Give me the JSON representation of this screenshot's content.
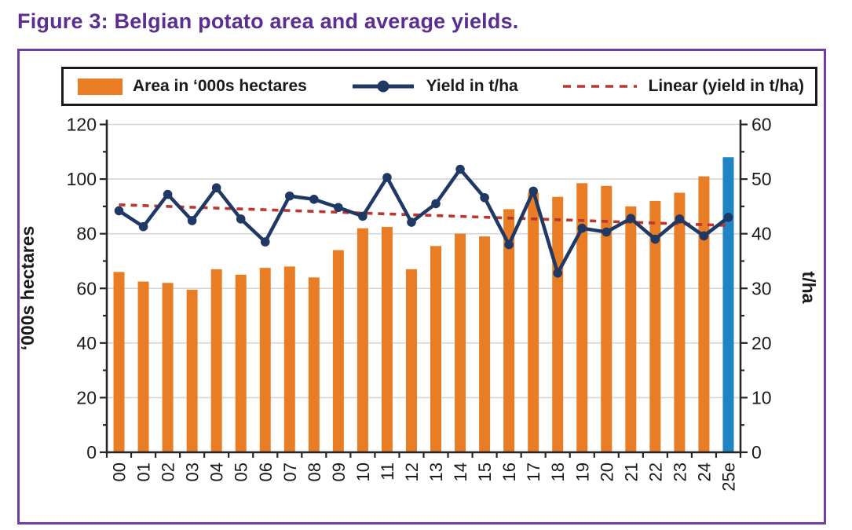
{
  "title": "Figure 3: Belgian potato area and average yields.",
  "legend": [
    {
      "label": "Area in ‘000s hectares",
      "marker": "orange-bar-swatch"
    },
    {
      "label": "Yield in t/ha",
      "marker": "navy-line-with-dot"
    },
    {
      "label": "Linear (yield in t/ha)",
      "marker": "red-dashed-line"
    }
  ],
  "colors": {
    "title": "#5B2E91",
    "frame_border": "#6B3FA6",
    "legend_border": "#1A1A1A",
    "area_bar": "#E87D25",
    "estimate_bar": "#1F83C4",
    "yield_line": "#1F3864",
    "trend_line": "#BE3530",
    "gridline": "#D6D6D6",
    "axis": "#262626",
    "text": "#1A1A1A"
  },
  "chart_data": {
    "type": "combo (bar + line + linear trend)",
    "title": "Figure 3: Belgian potato area and average yields.",
    "categories": [
      "00",
      "01",
      "02",
      "03",
      "04",
      "05",
      "06",
      "07",
      "08",
      "09",
      "10",
      "11",
      "12",
      "13",
      "14",
      "15",
      "16",
      "17",
      "18",
      "19",
      "20",
      "21",
      "22",
      "23",
      "24",
      "25e"
    ],
    "series": [
      {
        "name": "Area in ‘000s hectares",
        "type": "bar",
        "axis": "left",
        "values": [
          66,
          62.5,
          62,
          59.5,
          67,
          65,
          67.5,
          68,
          64,
          74,
          82,
          82.5,
          67,
          75.5,
          80,
          79,
          89,
          95,
          93.5,
          98.5,
          97.5,
          90,
          92,
          95,
          101,
          108
        ],
        "note": "final category 25e drawn as blue estimate bar"
      },
      {
        "name": "Yield in t/ha",
        "type": "line",
        "axis": "right",
        "values": [
          44.2,
          41.3,
          47.2,
          42.4,
          48.4,
          42.7,
          38.5,
          46.9,
          46.3,
          44.8,
          43.2,
          50.3,
          42.1,
          45.5,
          51.8,
          46.6,
          38,
          47.8,
          32.8,
          41,
          40.3,
          42.8,
          39,
          42.7,
          39.6,
          43
        ]
      },
      {
        "name": "Linear (yield in t/ha)",
        "type": "linear-trend",
        "axis": "right",
        "start": 45.3,
        "end": 41.5,
        "style": "dashed"
      }
    ],
    "left_axis": {
      "label": "‘000s hectares",
      "min": 0,
      "max": 120,
      "step": 20,
      "ticks": [
        0,
        20,
        40,
        60,
        80,
        100,
        120
      ]
    },
    "right_axis": {
      "label": "t/ha",
      "min": 0,
      "max": 60,
      "step": 10,
      "ticks": [
        0,
        10,
        20,
        30,
        40,
        50,
        60
      ]
    },
    "x_axis": {
      "tick_label_rotation": 90
    },
    "grid": true,
    "legend_position": "top"
  }
}
